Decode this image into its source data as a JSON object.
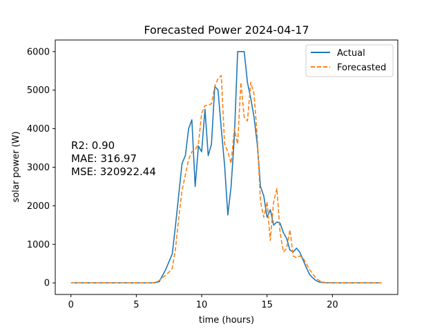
{
  "chart_data": {
    "type": "line",
    "title": "Forecasted Power 2024-04-17",
    "xlabel": "time (hours)",
    "ylabel": "solar power (W)",
    "xlim": [
      -1.2,
      25
    ],
    "ylim": [
      -300,
      6300
    ],
    "xticks": [
      0,
      5,
      10,
      15,
      20
    ],
    "yticks": [
      0,
      1000,
      2000,
      3000,
      4000,
      5000,
      6000
    ],
    "legend_position": "upper right",
    "annotations": [
      "R2: 0.90",
      "MAE: 316.97",
      "MSE: 320922.44"
    ],
    "series": [
      {
        "name": "Actual",
        "color": "#1f77b4",
        "style": "solid",
        "x": [
          0,
          6.25,
          6.75,
          7.25,
          7.75,
          8.0,
          8.25,
          8.5,
          8.75,
          9.0,
          9.25,
          9.5,
          9.75,
          10.0,
          10.25,
          10.5,
          10.75,
          11.0,
          11.25,
          11.5,
          11.75,
          12.0,
          12.25,
          12.5,
          12.75,
          13.0,
          13.25,
          13.5,
          13.75,
          14.0,
          14.25,
          14.5,
          14.75,
          15.0,
          15.25,
          15.5,
          15.75,
          16.0,
          16.25,
          16.5,
          16.75,
          17.0,
          17.25,
          17.5,
          17.75,
          18.0,
          18.25,
          18.5,
          18.75,
          19.0,
          19.25,
          19.5,
          20.0,
          23.75
        ],
        "y": [
          0,
          0,
          30,
          350,
          750,
          1500,
          2300,
          3100,
          3300,
          4000,
          4230,
          2500,
          3550,
          3400,
          4500,
          3300,
          3600,
          5100,
          5000,
          4000,
          3050,
          1760,
          2500,
          3800,
          6000,
          6000,
          6000,
          5200,
          4800,
          4300,
          3600,
          2500,
          2250,
          1700,
          1900,
          1500,
          1580,
          1550,
          1300,
          1150,
          850,
          800,
          900,
          800,
          600,
          400,
          220,
          130,
          60,
          20,
          10,
          5,
          0,
          0
        ]
      },
      {
        "name": "Forecasted",
        "color": "#ff7f0e",
        "style": "dashed",
        "x": [
          0,
          6.5,
          7.0,
          7.5,
          7.75,
          8.0,
          8.25,
          8.5,
          8.75,
          9.0,
          9.25,
          9.5,
          9.75,
          10.0,
          10.25,
          10.5,
          10.75,
          11.0,
          11.25,
          11.5,
          11.75,
          12.0,
          12.25,
          12.5,
          12.75,
          13.0,
          13.25,
          13.5,
          13.75,
          14.0,
          14.25,
          14.5,
          14.75,
          15.0,
          15.25,
          15.5,
          15.75,
          16.0,
          16.25,
          16.5,
          16.75,
          17.0,
          17.25,
          17.5,
          17.75,
          18.0,
          18.25,
          18.5,
          18.75,
          19.0,
          19.25,
          19.5,
          20.0,
          23.75
        ],
        "y": [
          0,
          0,
          130,
          280,
          380,
          900,
          1700,
          2400,
          2800,
          3200,
          3400,
          3450,
          3600,
          4400,
          4600,
          4600,
          4650,
          5100,
          5300,
          5380,
          3600,
          3400,
          3100,
          4000,
          3600,
          5200,
          4300,
          4200,
          5200,
          4900,
          3800,
          2100,
          1700,
          2100,
          1100,
          2100,
          2450,
          1300,
          800,
          900,
          1380,
          700,
          650,
          700,
          650,
          500,
          350,
          230,
          120,
          60,
          20,
          10,
          0,
          0
        ]
      }
    ]
  }
}
